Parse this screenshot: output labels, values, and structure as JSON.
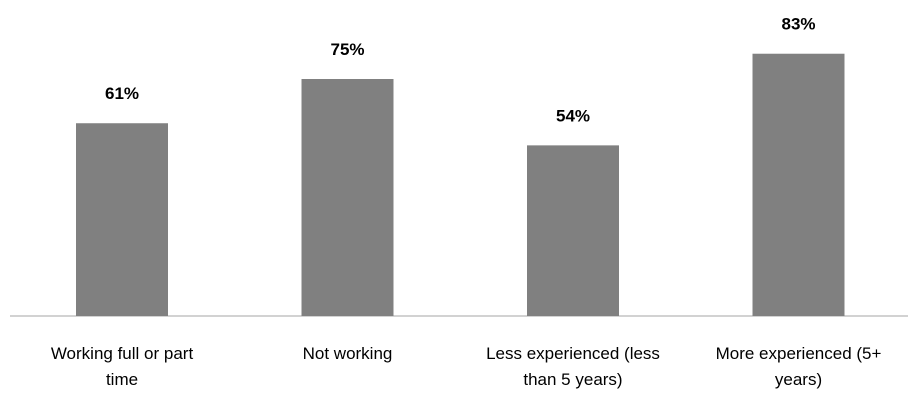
{
  "chart_data": {
    "type": "bar",
    "categories": [
      [
        "Working full or part",
        "time"
      ],
      [
        "Not working"
      ],
      [
        "Less experienced (less",
        "than 5 years)"
      ],
      [
        "More experienced (5+",
        "years)"
      ]
    ],
    "values": [
      61,
      75,
      54,
      83
    ],
    "data_labels": [
      "61%",
      "75%",
      "54%",
      "83%"
    ],
    "value_unit": "%",
    "ylim": [
      0,
      100
    ],
    "grid": false,
    "legend": "none",
    "bar_color": "#808080",
    "axis_color": "#a6a6a6"
  }
}
